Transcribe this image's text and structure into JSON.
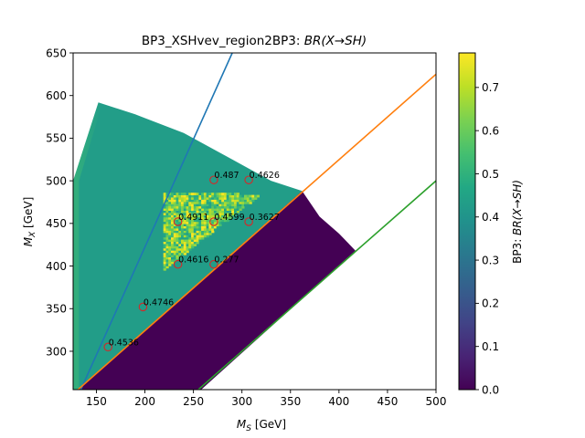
{
  "chart_data": {
    "type": "heatmap",
    "title": "BP3_XSHvev_region2BP3: BR(X→SH)",
    "title_parts": {
      "prefix": "BP3_XSHvev_region2BP3: ",
      "math": "BR(X→SH)"
    },
    "xlabel": "M_S [GeV]",
    "xlabel_parts": {
      "var": "M",
      "sub": "S",
      "unit": " [GeV]"
    },
    "ylabel": "M_X [GeV]",
    "ylabel_parts": {
      "var": "M",
      "sub": "X",
      "unit": " [GeV]"
    },
    "xlim": [
      126,
      500
    ],
    "ylim": [
      255,
      650
    ],
    "xticks": [
      150,
      200,
      250,
      300,
      350,
      400,
      450,
      500
    ],
    "yticks": [
      300,
      350,
      400,
      450,
      500,
      550,
      600,
      650
    ],
    "colorbar": {
      "label": "BP3: BR(X→SH)",
      "label_parts": {
        "prefix": "BP3: ",
        "math": "BR(X→SH)"
      },
      "range": [
        0.0,
        0.78
      ],
      "ticks": [
        0.0,
        0.1,
        0.2,
        0.3,
        0.4,
        0.5,
        0.6,
        0.7
      ],
      "tick_labels": [
        "0.0",
        "0.1",
        "0.2",
        "0.3",
        "0.4",
        "0.5",
        "0.6",
        "0.7"
      ],
      "colormap": "viridis"
    },
    "region_values": {
      "upper_wedge": 0.43,
      "lower_wedge": 0.0,
      "noisy_triangle": 0.6
    },
    "lines": [
      {
        "color": "#1f77b4",
        "points": [
          [
            126,
            235
          ],
          [
            290,
            650
          ]
        ]
      },
      {
        "color": "#ff7f0e",
        "points": [
          [
            126,
            250
          ],
          [
            500,
            625
          ]
        ]
      },
      {
        "color": "#2ca02c",
        "points": [
          [
            250,
            250
          ],
          [
            500,
            500
          ]
        ]
      }
    ],
    "points": [
      {
        "x": 162,
        "y": 305,
        "label": "0.4536"
      },
      {
        "x": 198,
        "y": 352,
        "label": "0.4746"
      },
      {
        "x": 234,
        "y": 402,
        "label": "0.4616"
      },
      {
        "x": 271,
        "y": 402,
        "label": "0.277"
      },
      {
        "x": 234,
        "y": 452,
        "label": "0.4911"
      },
      {
        "x": 271,
        "y": 452,
        "label": "0.4599"
      },
      {
        "x": 307,
        "y": 452,
        "label": "0.3627"
      },
      {
        "x": 271,
        "y": 501,
        "label": "0.487"
      },
      {
        "x": 307,
        "y": 501,
        "label": "0.4626"
      }
    ],
    "marker_color": "#d62728",
    "grid": false,
    "legend": "none"
  }
}
